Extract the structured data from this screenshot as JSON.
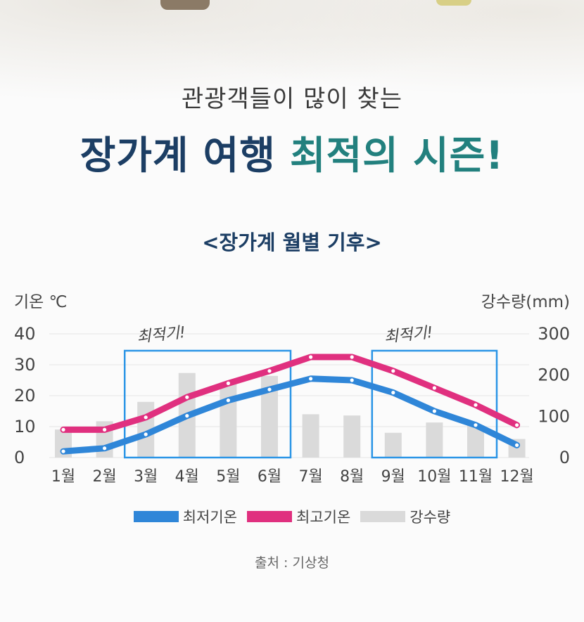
{
  "header": {
    "subtitle": "관광객들이 많이 찾는",
    "headline_part1": "장가계 여행",
    "headline_part2": "최적의 시즌!"
  },
  "chart_title": "<장가계 월별 기후>",
  "source_text": "출처 : 기상청",
  "annotations": {
    "optimal_label": "최적기!"
  },
  "colors": {
    "navy": "#1c3e64",
    "teal": "#22807e",
    "low_line": "#2f86d8",
    "high_line": "#e0307f",
    "rain_bar": "#dadada",
    "highlight_box": "#2b95e6"
  },
  "chart_data": {
    "type": "line",
    "categories": [
      "1월",
      "2월",
      "3월",
      "4월",
      "5월",
      "6월",
      "7월",
      "8월",
      "9월",
      "10월",
      "11월",
      "12월"
    ],
    "y_left_label": "기온 ℃",
    "y_right_label": "강수량(mm)",
    "y_left_ticks": [
      "0",
      "10",
      "20",
      "30",
      "40"
    ],
    "y_right_ticks": [
      "0",
      "100",
      "200",
      "300"
    ],
    "y_left_range": [
      0,
      40
    ],
    "y_right_range": [
      0,
      300
    ],
    "series": [
      {
        "name": "최저기온",
        "axis": "left",
        "kind": "line",
        "color": "#2f86d8",
        "values": [
          2,
          3,
          7.5,
          13.5,
          18.5,
          22,
          25.5,
          25,
          21,
          15,
          10.5,
          4
        ]
      },
      {
        "name": "최고기온",
        "axis": "left",
        "kind": "line",
        "color": "#e0307f",
        "values": [
          9,
          9,
          13,
          19.5,
          24,
          28,
          32.5,
          32.5,
          28,
          22.5,
          17,
          10.5
        ]
      },
      {
        "name": "강수량",
        "axis": "right",
        "kind": "bar",
        "color": "#dadada",
        "values": [
          68,
          88,
          135,
          205,
          180,
          198,
          105,
          102,
          60,
          85,
          78,
          45
        ]
      }
    ],
    "optimal_periods": [
      {
        "from": "3월",
        "to": "6월",
        "label": "최적기!"
      },
      {
        "from": "9월",
        "to": "11월",
        "label": "최적기!"
      }
    ],
    "grid": true,
    "legend_position": "bottom"
  }
}
